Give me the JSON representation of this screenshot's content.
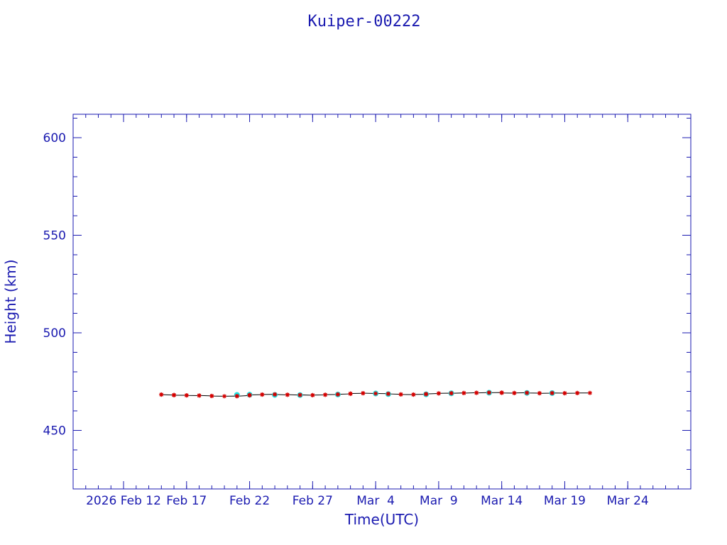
{
  "chart_data": {
    "type": "scatter",
    "title": "Kuiper-00222",
    "xlabel": "Time(UTC)",
    "ylabel": "Height (km)",
    "x_axis_type": "date",
    "xlim": [
      "2026-02-08",
      "2026-03-29"
    ],
    "ylim": [
      420,
      612
    ],
    "y_ticks": [
      450,
      500,
      550,
      600
    ],
    "x_tick_labels": [
      {
        "date": "2026-02-12",
        "label": "2026 Feb 12"
      },
      {
        "date": "2026-02-17",
        "label": "Feb 17"
      },
      {
        "date": "2026-02-22",
        "label": "Feb 22"
      },
      {
        "date": "2026-02-27",
        "label": "Feb 27"
      },
      {
        "date": "2026-03-04",
        "label": "Mar  4"
      },
      {
        "date": "2026-03-09",
        "label": "Mar  9"
      },
      {
        "date": "2026-03-14",
        "label": "Mar 14"
      },
      {
        "date": "2026-03-19",
        "label": "Mar 19"
      },
      {
        "date": "2026-03-24",
        "label": "Mar 24"
      }
    ],
    "grid": false,
    "colors": {
      "axes": "#1a1ab0",
      "points_primary": "#d40000",
      "points_secondary": "#22e0e0",
      "line": "#000000"
    },
    "series": [
      {
        "color": "#d40000",
        "marker": "star",
        "x": [
          "2026-02-15",
          "2026-02-15",
          "2026-02-16",
          "2026-02-16",
          "2026-02-16",
          "2026-02-17",
          "2026-02-17",
          "2026-02-18",
          "2026-02-18",
          "2026-02-19",
          "2026-02-19",
          "2026-02-20",
          "2026-02-21",
          "2026-02-21",
          "2026-02-22",
          "2026-02-22",
          "2026-02-23",
          "2026-02-23",
          "2026-02-24",
          "2026-02-24",
          "2026-02-25",
          "2026-02-25",
          "2026-02-26",
          "2026-02-26",
          "2026-02-27",
          "2026-02-27",
          "2026-02-28",
          "2026-02-28",
          "2026-03-01",
          "2026-03-01",
          "2026-03-02",
          "2026-03-02",
          "2026-03-03",
          "2026-03-03",
          "2026-03-04",
          "2026-03-05",
          "2026-03-05",
          "2026-03-06",
          "2026-03-06",
          "2026-03-07",
          "2026-03-07",
          "2026-03-08",
          "2026-03-08",
          "2026-03-09",
          "2026-03-09",
          "2026-03-10",
          "2026-03-10",
          "2026-03-11",
          "2026-03-11",
          "2026-03-12",
          "2026-03-12",
          "2026-03-13",
          "2026-03-13",
          "2026-03-14",
          "2026-03-14",
          "2026-03-15",
          "2026-03-15",
          "2026-03-16",
          "2026-03-16",
          "2026-03-17",
          "2026-03-17",
          "2026-03-18",
          "2026-03-18",
          "2026-03-19",
          "2026-03-19",
          "2026-03-20",
          "2026-03-20",
          "2026-03-21"
        ],
        "y": [
          468.4,
          468.3,
          468.1,
          468.2,
          468.0,
          468.0,
          467.9,
          467.8,
          467.9,
          467.7,
          467.6,
          467.5,
          467.6,
          467.5,
          467.9,
          468.2,
          468.3,
          468.4,
          468.5,
          468.4,
          468.2,
          468.3,
          468.1,
          468.2,
          468.0,
          468.1,
          468.2,
          468.3,
          468.4,
          468.5,
          468.7,
          468.9,
          469.0,
          469.1,
          468.9,
          468.8,
          468.7,
          468.5,
          468.4,
          468.3,
          468.4,
          468.5,
          468.7,
          468.9,
          469.0,
          469.1,
          469.0,
          469.2,
          469.1,
          469.3,
          469.2,
          469.4,
          469.3,
          469.4,
          469.2,
          469.1,
          469.2,
          469.3,
          469.2,
          469.1,
          469.0,
          469.1,
          469.2,
          469.1,
          469.0,
          469.1,
          469.2,
          469.2
        ]
      },
      {
        "color": "#22e0e0",
        "marker": "dot",
        "x": [
          "2026-02-21",
          "2026-02-22",
          "2026-02-24",
          "2026-02-26",
          "2026-03-01",
          "2026-03-04",
          "2026-03-05",
          "2026-03-08",
          "2026-03-10",
          "2026-03-13",
          "2026-03-16",
          "2026-03-18"
        ],
        "y": [
          468.2,
          468.3,
          468.2,
          468.1,
          468.4,
          468.9,
          468.6,
          468.5,
          469.0,
          469.3,
          469.2,
          469.1
        ]
      }
    ]
  }
}
